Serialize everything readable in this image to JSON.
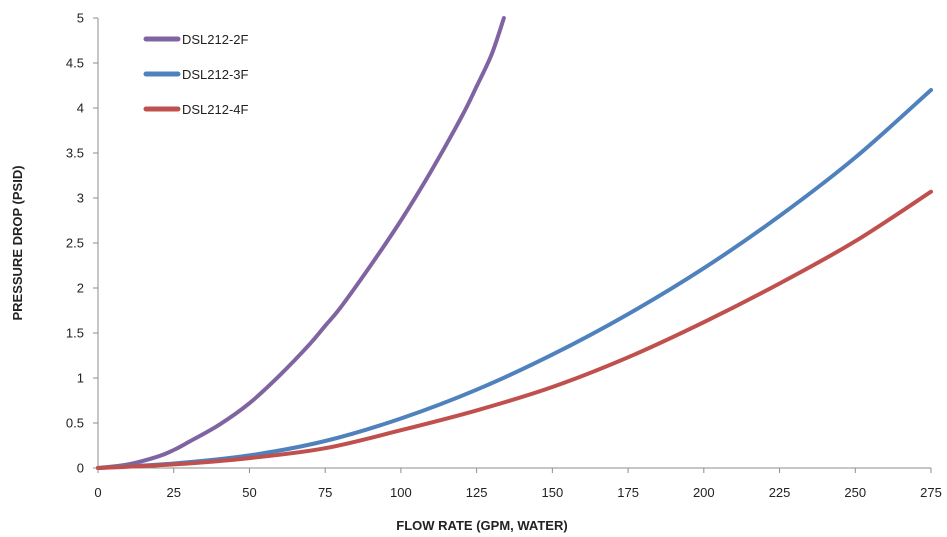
{
  "chart_data": {
    "type": "line",
    "title": "",
    "xlabel": "FLOW RATE (GPM, WATER)",
    "ylabel": "PRESSURE DROP (PSID)",
    "xlim": [
      0,
      275
    ],
    "ylim": [
      0,
      5
    ],
    "xticks": [
      0,
      25,
      50,
      75,
      100,
      125,
      150,
      175,
      200,
      225,
      250,
      275
    ],
    "yticks": [
      0,
      0.5,
      1,
      1.5,
      2,
      2.5,
      3,
      3.5,
      4,
      4.5,
      5
    ],
    "xtick_labels": [
      "0",
      "25",
      "50",
      "75",
      "100",
      "125",
      "150",
      "175",
      "200",
      "225",
      "250",
      "275"
    ],
    "ytick_labels": [
      "0",
      "0.5",
      "1",
      "1.5",
      "2",
      "2.5",
      "3",
      "3.5",
      "4",
      "4.5",
      "5"
    ],
    "grid": false,
    "legend_position": "top-left",
    "series": [
      {
        "name": "DSL212-2F",
        "color": "#8064a2",
        "x": [
          0,
          10,
          20,
          25,
          30,
          40,
          50,
          60,
          70,
          75,
          80,
          90,
          100,
          110,
          120,
          125,
          130,
          134
        ],
        "y": [
          0,
          0.04,
          0.13,
          0.2,
          0.29,
          0.48,
          0.72,
          1.03,
          1.38,
          1.58,
          1.78,
          2.25,
          2.75,
          3.3,
          3.9,
          4.24,
          4.6,
          5.0
        ]
      },
      {
        "name": "DSL212-3F",
        "color": "#4f81bd",
        "x": [
          0,
          25,
          50,
          75,
          100,
          125,
          150,
          175,
          200,
          225,
          250,
          275
        ],
        "y": [
          0,
          0.05,
          0.14,
          0.3,
          0.55,
          0.87,
          1.26,
          1.71,
          2.22,
          2.8,
          3.45,
          4.2
        ]
      },
      {
        "name": "DSL212-4F",
        "color": "#c0504d",
        "x": [
          0,
          25,
          50,
          75,
          100,
          125,
          150,
          175,
          200,
          225,
          250,
          275
        ],
        "y": [
          0,
          0.04,
          0.11,
          0.22,
          0.42,
          0.64,
          0.9,
          1.23,
          1.62,
          2.05,
          2.52,
          3.07
        ]
      }
    ]
  }
}
